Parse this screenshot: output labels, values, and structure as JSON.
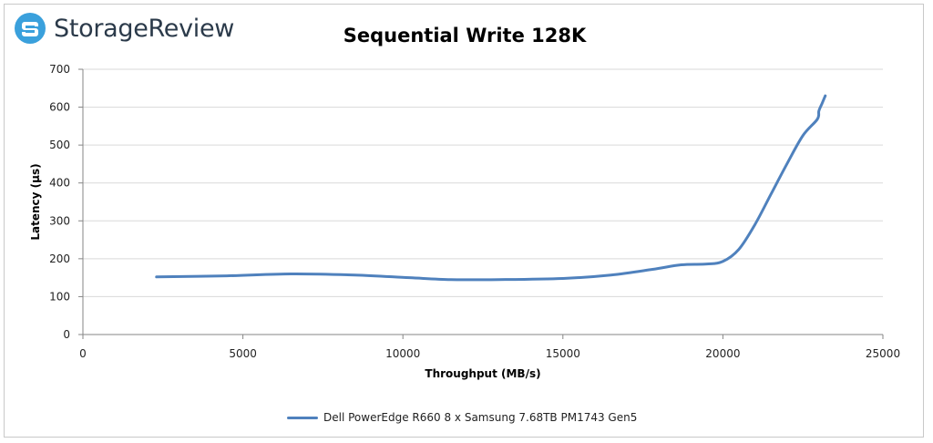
{
  "brand": {
    "name": "StorageReview",
    "logo_icon": "storagereview-logo-icon",
    "logo_color": "#3aa0dc"
  },
  "chart_data": {
    "type": "line",
    "title": "Sequential Write 128K",
    "xlabel": "Throughput (MB/s)",
    "ylabel": "Latency (µs)",
    "xlim": [
      0,
      25000
    ],
    "ylim": [
      0,
      700
    ],
    "x_ticks": [
      0,
      5000,
      10000,
      15000,
      20000,
      25000
    ],
    "y_ticks": [
      0,
      100,
      200,
      300,
      400,
      500,
      600,
      700
    ],
    "grid": "horizontal",
    "legend_position": "bottom",
    "series": [
      {
        "name": "Dell PowerEdge R660 8 x Samsung 7.68TB PM1743 Gen5",
        "color": "#4f81bd",
        "points": [
          [
            2300,
            152
          ],
          [
            4500,
            155
          ],
          [
            6500,
            160
          ],
          [
            8500,
            157
          ],
          [
            10200,
            150
          ],
          [
            11500,
            145
          ],
          [
            13000,
            145
          ],
          [
            15000,
            148
          ],
          [
            16500,
            157
          ],
          [
            17800,
            172
          ],
          [
            18700,
            184
          ],
          [
            19500,
            186
          ],
          [
            20000,
            193
          ],
          [
            20500,
            225
          ],
          [
            21000,
            290
          ],
          [
            21500,
            370
          ],
          [
            22000,
            450
          ],
          [
            22500,
            525
          ],
          [
            22950,
            568
          ],
          [
            23000,
            590
          ],
          [
            23100,
            610
          ],
          [
            23200,
            630
          ]
        ]
      }
    ]
  }
}
